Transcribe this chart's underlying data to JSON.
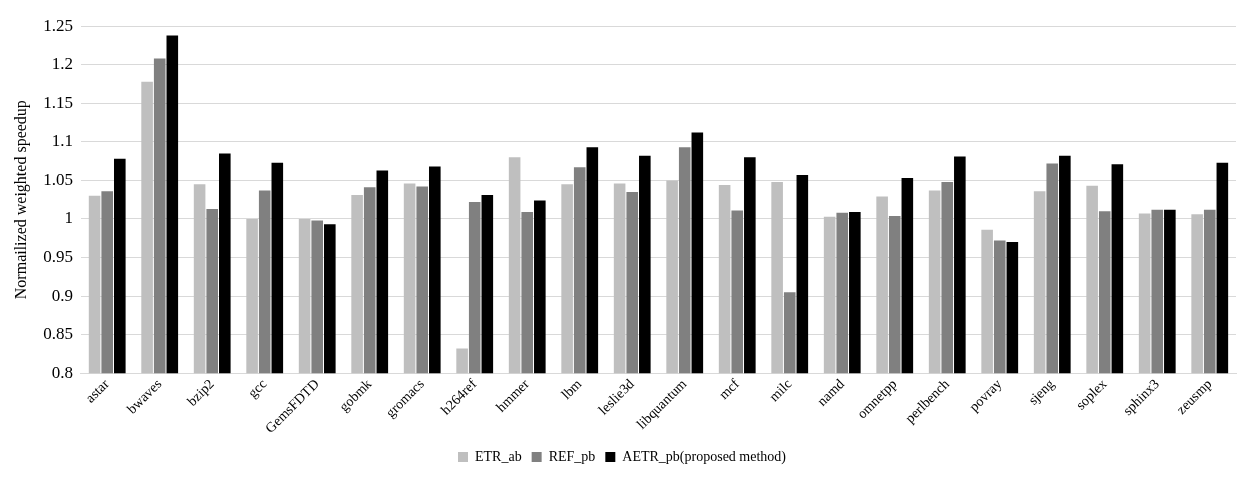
{
  "chart_data": {
    "type": "bar",
    "ylabel": "Normailized weighted speedup",
    "categories": [
      "astar",
      "bwaves",
      "bzip2",
      "gcc",
      "GemsFDTD",
      "gobmk",
      "gromacs",
      "h264ref",
      "hmmer",
      "lbm",
      "leslie3d",
      "libquantum",
      "mcf",
      "milc",
      "namd",
      "omnetpp",
      "perlbench",
      "povray",
      "sjeng",
      "soplex",
      "sphinx3",
      "zeusmp"
    ],
    "series": [
      {
        "name": "ETR_ab",
        "color": "#bfbfbf",
        "values": [
          1.03,
          1.178,
          1.045,
          1.0,
          1.0,
          1.031,
          1.046,
          0.832,
          1.08,
          1.045,
          1.046,
          1.05,
          1.044,
          1.048,
          1.003,
          1.029,
          1.037,
          0.986,
          1.036,
          1.043,
          1.007,
          1.006
        ]
      },
      {
        "name": "REF_pb",
        "color": "#808080",
        "values": [
          1.036,
          1.208,
          1.013,
          1.037,
          0.998,
          1.041,
          1.042,
          1.022,
          1.009,
          1.067,
          1.035,
          1.093,
          1.011,
          0.905,
          1.008,
          1.004,
          1.048,
          0.972,
          1.072,
          1.01,
          1.012,
          1.012
        ]
      },
      {
        "name": "AETR_pb(proposed method)",
        "color": "#000000",
        "values": [
          1.078,
          1.238,
          1.085,
          1.073,
          0.993,
          1.063,
          1.068,
          1.031,
          1.024,
          1.093,
          1.082,
          1.112,
          1.08,
          1.057,
          1.009,
          1.053,
          1.081,
          0.97,
          1.082,
          1.071,
          1.012,
          1.073
        ]
      }
    ],
    "ylim": [
      0.8,
      1.25
    ],
    "yticks": [
      0.8,
      0.85,
      0.9,
      0.95,
      1,
      1.05,
      1.1,
      1.15,
      1.2,
      1.25
    ],
    "grid": "y",
    "legend": "bottom"
  }
}
